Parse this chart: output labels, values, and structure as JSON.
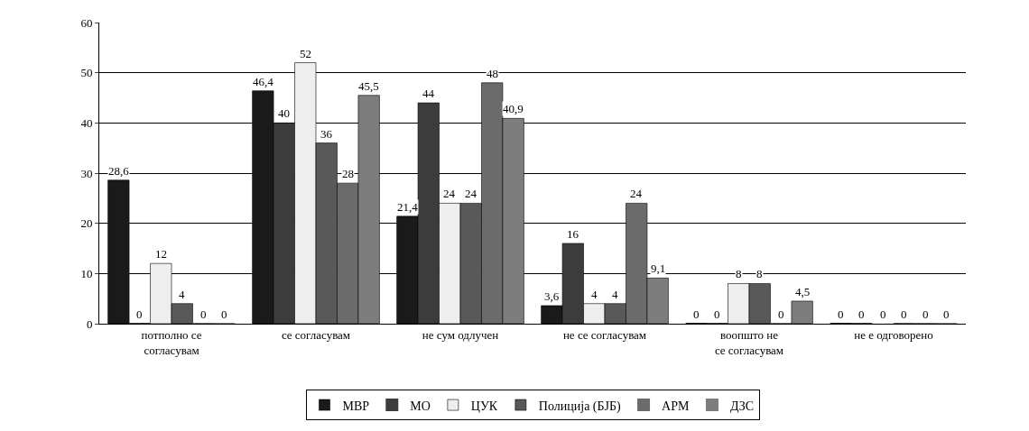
{
  "chart_data": {
    "type": "bar",
    "categories": [
      "потполно се согласувам",
      "се согласувам",
      "не сум одлучен",
      "не се согласувам",
      "воопшто не се согласувам",
      "не е одговорено"
    ],
    "series": [
      {
        "name": "МВР",
        "color": "#1a1a1a",
        "values": [
          28.6,
          46.4,
          21.4,
          3.6,
          0,
          0
        ],
        "value_labels": [
          "28,6",
          "46,4",
          "21,4",
          "3,6",
          "0",
          "0"
        ]
      },
      {
        "name": "МО",
        "color": "#3c3c3c",
        "values": [
          0,
          40,
          44,
          16,
          0,
          0
        ],
        "value_labels": [
          "0",
          "40",
          "44",
          "16",
          "0",
          "0"
        ]
      },
      {
        "name": "ЦУК",
        "color": "#eeeeee",
        "values": [
          12,
          52,
          24,
          4,
          8,
          0
        ],
        "value_labels": [
          "12",
          "52",
          "24",
          "4",
          "8",
          "0"
        ]
      },
      {
        "name": "Полиција (БЈБ)",
        "color": "#595959",
        "values": [
          4,
          36,
          24,
          4,
          8,
          0
        ],
        "value_labels": [
          "4",
          "36",
          "24",
          "4",
          "8",
          "0"
        ]
      },
      {
        "name": "АРМ",
        "color": "#6b6b6b",
        "values": [
          0,
          28,
          48,
          24,
          0,
          0
        ],
        "value_labels": [
          "0",
          "28",
          "48",
          "24",
          "0",
          "0"
        ]
      },
      {
        "name": "ДЗС",
        "color": "#7d7d7d",
        "values": [
          0,
          45.5,
          40.9,
          9.1,
          4.5,
          0
        ],
        "value_labels": [
          "0",
          "45,5",
          "40,9",
          "9,1",
          "4,5",
          "0"
        ]
      }
    ],
    "ylim": [
      0,
      60
    ],
    "yticks": [
      0,
      10,
      20,
      30,
      40,
      50,
      60
    ],
    "grid": "y",
    "legend": "bottom"
  }
}
